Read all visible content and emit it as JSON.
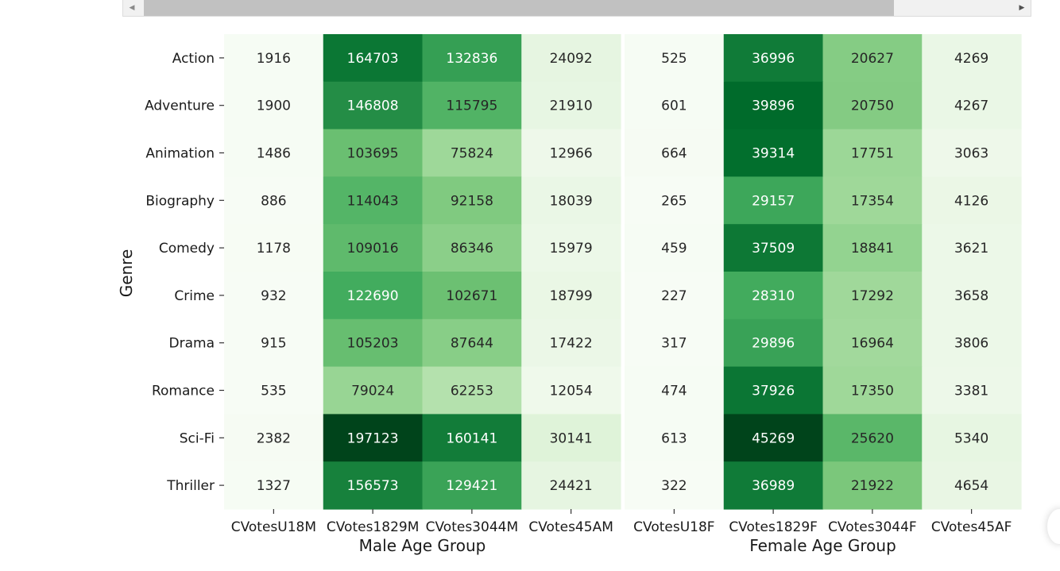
{
  "colors": {
    "scale": [
      "#f7fcf5",
      "#e5f5e0",
      "#c7e9c0",
      "#a1d99b",
      "#74c476",
      "#41ab5d",
      "#238b45",
      "#006d2c",
      "#00441b"
    ]
  },
  "chart_data": [
    {
      "type": "heatmap",
      "xlabel": "Male Age Group",
      "ylabel": "Genre",
      "categories": [
        "CVotesU18M",
        "CVotes1829M",
        "CVotes3044M",
        "CVotes45AM"
      ],
      "rows": [
        "Action",
        "Adventure",
        "Animation",
        "Biography",
        "Comedy",
        "Crime",
        "Drama",
        "Romance",
        "Sci-Fi",
        "Thriller"
      ],
      "values": [
        [
          1916,
          164703,
          132836,
          24092
        ],
        [
          1900,
          146808,
          115795,
          21910
        ],
        [
          1486,
          103695,
          75824,
          12966
        ],
        [
          886,
          114043,
          92158,
          18039
        ],
        [
          1178,
          109016,
          86346,
          15979
        ],
        [
          932,
          122690,
          102671,
          18799
        ],
        [
          915,
          105203,
          87644,
          17422
        ],
        [
          535,
          79024,
          62253,
          12054
        ],
        [
          2382,
          197123,
          160141,
          30141
        ],
        [
          1327,
          156573,
          129421,
          24421
        ]
      ],
      "colormap": "Greens",
      "annotated": true
    },
    {
      "type": "heatmap",
      "xlabel": "Female Age Group",
      "ylabel": "",
      "categories": [
        "CVotesU18F",
        "CVotes1829F",
        "CVotes3044F",
        "CVotes45AF"
      ],
      "rows": [
        "Action",
        "Adventure",
        "Animation",
        "Biography",
        "Comedy",
        "Crime",
        "Drama",
        "Romance",
        "Sci-Fi",
        "Thriller"
      ],
      "values": [
        [
          525,
          36996,
          20627,
          4269
        ],
        [
          601,
          39896,
          20750,
          4267
        ],
        [
          664,
          39314,
          17751,
          3063
        ],
        [
          265,
          29157,
          17354,
          4126
        ],
        [
          459,
          37509,
          18841,
          3621
        ],
        [
          227,
          28310,
          17292,
          3658
        ],
        [
          317,
          29896,
          16964,
          3806
        ],
        [
          474,
          37926,
          17350,
          3381
        ],
        [
          613,
          45269,
          25620,
          5340
        ],
        [
          322,
          36989,
          21922,
          4654
        ]
      ],
      "colormap": "Greens",
      "annotated": true
    }
  ]
}
